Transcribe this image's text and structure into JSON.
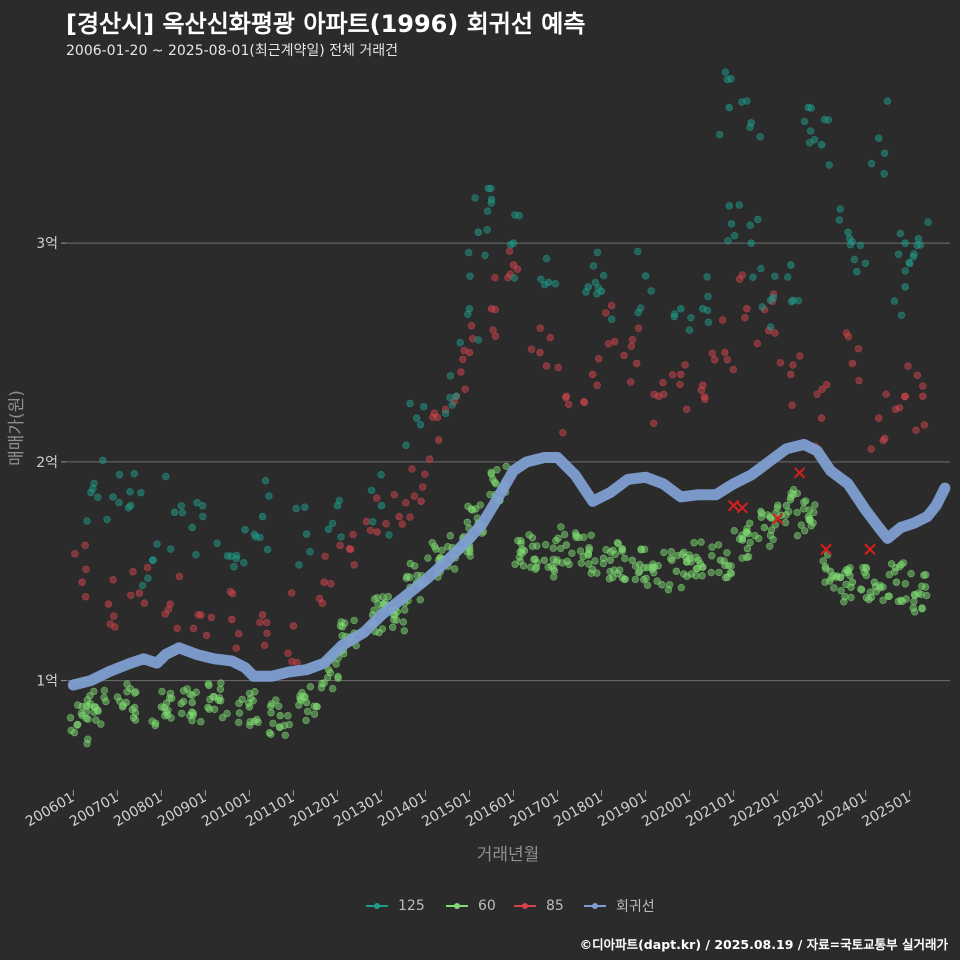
{
  "title": "[경산시] 옥산신화평광 아파트(1996) 회귀선 예측",
  "subtitle": "2006-01-20 ~ 2025-08-01(최근계약일) 전체 거래건",
  "footer": "©디아파트(dapt.kr) / 2025.08.19 / 자료=국토교통부 실거래가",
  "chart_data": {
    "type": "scatter",
    "xlabel": "거래년월",
    "ylabel": "매매가(원)",
    "x_range": [
      "2005-11",
      "2025-12"
    ],
    "y_range_eok": [
      0.5,
      3.7
    ],
    "x_ticks": [
      "200601",
      "200701",
      "200801",
      "200901",
      "201001",
      "201101",
      "201201",
      "201301",
      "201401",
      "201501",
      "201601",
      "201701",
      "201801",
      "201901",
      "202001",
      "202101",
      "202201",
      "202301",
      "202401",
      "202501"
    ],
    "y_ticks": [
      {
        "value": 1,
        "label": "1억"
      },
      {
        "value": 2,
        "label": "2억"
      },
      {
        "value": 3,
        "label": "3억"
      }
    ],
    "grid": "horizontal",
    "legend_position": "bottom",
    "series": [
      {
        "name": "125",
        "color": "#1f9c8a",
        "base_points": [
          [
            2006.4,
            1.86
          ],
          [
            2006.9,
            1.84
          ],
          [
            2007.3,
            1.8
          ],
          [
            2007.8,
            1.55
          ],
          [
            2008.3,
            1.77
          ],
          [
            2008.7,
            1.7
          ],
          [
            2009.5,
            1.57
          ],
          [
            2009.9,
            1.69
          ],
          [
            2010.3,
            1.75
          ],
          [
            2011.3,
            1.67
          ],
          [
            2012.0,
            1.8
          ],
          [
            2013.0,
            1.8
          ],
          [
            2013.8,
            2.2
          ],
          [
            2014.7,
            2.3
          ],
          [
            2015.0,
            2.7
          ],
          [
            2015.2,
            3.05
          ],
          [
            2015.5,
            3.2
          ],
          [
            2016.0,
            3.0
          ],
          [
            2016.8,
            2.82
          ],
          [
            2017.7,
            2.8
          ],
          [
            2018.0,
            2.78
          ],
          [
            2019.0,
            2.85
          ],
          [
            2019.8,
            2.7
          ],
          [
            2020.3,
            2.7
          ],
          [
            2020.9,
            3.17
          ],
          [
            2021.4,
            3.0
          ],
          [
            2021.9,
            2.75
          ],
          [
            2022.3,
            2.9
          ],
          [
            2020.9,
            3.62
          ],
          [
            2021.4,
            3.55
          ],
          [
            2022.7,
            3.62
          ],
          [
            2023.0,
            3.45
          ],
          [
            2023.6,
            3.05
          ],
          [
            2023.8,
            2.87
          ],
          [
            2024.3,
            3.48
          ],
          [
            2024.9,
            3.0
          ],
          [
            2025.2,
            3.02
          ],
          [
            2024.9,
            2.8
          ]
        ]
      },
      {
        "name": "60",
        "color": "#7fdc72",
        "base_points": [
          [
            2006.1,
            0.8
          ],
          [
            2006.5,
            0.88
          ],
          [
            2007.2,
            0.9
          ],
          [
            2008.0,
            0.88
          ],
          [
            2008.7,
            0.9
          ],
          [
            2009.3,
            0.91
          ],
          [
            2010.0,
            0.88
          ],
          [
            2010.7,
            0.84
          ],
          [
            2011.3,
            0.9
          ],
          [
            2011.8,
            1.05
          ],
          [
            2012.3,
            1.2
          ],
          [
            2012.8,
            1.3
          ],
          [
            2013.3,
            1.3
          ],
          [
            2013.8,
            1.45
          ],
          [
            2014.3,
            1.55
          ],
          [
            2014.8,
            1.6
          ],
          [
            2015.2,
            1.72
          ],
          [
            2015.6,
            1.9
          ],
          [
            2016.2,
            1.6
          ],
          [
            2016.7,
            1.55
          ],
          [
            2017.2,
            1.62
          ],
          [
            2017.7,
            1.58
          ],
          [
            2018.2,
            1.55
          ],
          [
            2018.7,
            1.55
          ],
          [
            2019.2,
            1.52
          ],
          [
            2019.7,
            1.5
          ],
          [
            2020.2,
            1.55
          ],
          [
            2020.7,
            1.55
          ],
          [
            2021.2,
            1.65
          ],
          [
            2021.7,
            1.7
          ],
          [
            2022.2,
            1.8
          ],
          [
            2022.7,
            1.75
          ],
          [
            2023.2,
            1.5
          ],
          [
            2023.7,
            1.45
          ],
          [
            2024.2,
            1.45
          ],
          [
            2024.7,
            1.45
          ],
          [
            2025.2,
            1.4
          ]
        ]
      },
      {
        "name": "85",
        "color": "#d2454b",
        "base_points": [
          [
            2006.2,
            1.45
          ],
          [
            2006.8,
            1.35
          ],
          [
            2007.5,
            1.4
          ],
          [
            2008.2,
            1.35
          ],
          [
            2008.9,
            1.3
          ],
          [
            2009.6,
            1.28
          ],
          [
            2010.3,
            1.3
          ],
          [
            2011.0,
            1.25
          ],
          [
            2011.7,
            1.45
          ],
          [
            2012.3,
            1.6
          ],
          [
            2012.9,
            1.68
          ],
          [
            2013.4,
            1.75
          ],
          [
            2013.9,
            1.82
          ],
          [
            2014.3,
            2.1
          ],
          [
            2014.7,
            2.3
          ],
          [
            2015.0,
            2.5
          ],
          [
            2015.5,
            2.7
          ],
          [
            2016.0,
            2.9
          ],
          [
            2016.6,
            2.5
          ],
          [
            2017.2,
            2.3
          ],
          [
            2017.8,
            2.4
          ],
          [
            2018.3,
            2.55
          ],
          [
            2018.8,
            2.45
          ],
          [
            2019.3,
            2.3
          ],
          [
            2019.8,
            2.4
          ],
          [
            2020.3,
            2.35
          ],
          [
            2020.8,
            2.5
          ],
          [
            2021.3,
            2.7
          ],
          [
            2021.8,
            2.6
          ],
          [
            2022.3,
            2.4
          ],
          [
            2023.0,
            2.2
          ],
          [
            2023.7,
            2.45
          ],
          [
            2024.3,
            2.2
          ],
          [
            2024.9,
            2.3
          ],
          [
            2025.3,
            2.3
          ]
        ]
      },
      {
        "name": "회귀선",
        "color": "#7f9fd1",
        "points": [
          [
            2006.0,
            0.98
          ],
          [
            2006.4,
            1.0
          ],
          [
            2006.8,
            1.04
          ],
          [
            2007.3,
            1.08
          ],
          [
            2007.6,
            1.1
          ],
          [
            2007.9,
            1.08
          ],
          [
            2008.1,
            1.12
          ],
          [
            2008.4,
            1.15
          ],
          [
            2008.8,
            1.12
          ],
          [
            2009.2,
            1.1
          ],
          [
            2009.6,
            1.09
          ],
          [
            2009.9,
            1.06
          ],
          [
            2010.1,
            1.02
          ],
          [
            2010.5,
            1.02
          ],
          [
            2010.9,
            1.04
          ],
          [
            2011.3,
            1.05
          ],
          [
            2011.7,
            1.08
          ],
          [
            2012.1,
            1.16
          ],
          [
            2012.6,
            1.22
          ],
          [
            2013.0,
            1.3
          ],
          [
            2013.5,
            1.38
          ],
          [
            2014.0,
            1.46
          ],
          [
            2014.5,
            1.55
          ],
          [
            2015.0,
            1.65
          ],
          [
            2015.3,
            1.72
          ],
          [
            2015.6,
            1.82
          ],
          [
            2016.0,
            1.96
          ],
          [
            2016.3,
            2.0
          ],
          [
            2016.7,
            2.02
          ],
          [
            2017.0,
            2.02
          ],
          [
            2017.4,
            1.94
          ],
          [
            2017.8,
            1.82
          ],
          [
            2018.2,
            1.86
          ],
          [
            2018.6,
            1.92
          ],
          [
            2019.0,
            1.93
          ],
          [
            2019.4,
            1.9
          ],
          [
            2019.8,
            1.84
          ],
          [
            2020.2,
            1.85
          ],
          [
            2020.6,
            1.85
          ],
          [
            2021.0,
            1.9
          ],
          [
            2021.4,
            1.94
          ],
          [
            2021.8,
            2.0
          ],
          [
            2022.2,
            2.06
          ],
          [
            2022.6,
            2.08
          ],
          [
            2022.9,
            2.05
          ],
          [
            2023.2,
            1.96
          ],
          [
            2023.6,
            1.9
          ],
          [
            2024.0,
            1.78
          ],
          [
            2024.3,
            1.7
          ],
          [
            2024.5,
            1.65
          ],
          [
            2024.8,
            1.7
          ],
          [
            2025.1,
            1.72
          ],
          [
            2025.4,
            1.75
          ],
          [
            2025.6,
            1.8
          ],
          [
            2025.8,
            1.88
          ]
        ]
      }
    ],
    "x_marks": [
      [
        2021.0,
        1.8
      ],
      [
        2021.2,
        1.79
      ],
      [
        2022.0,
        1.74
      ],
      [
        2022.5,
        1.95
      ],
      [
        2023.1,
        1.6
      ],
      [
        2024.1,
        1.6
      ]
    ]
  }
}
